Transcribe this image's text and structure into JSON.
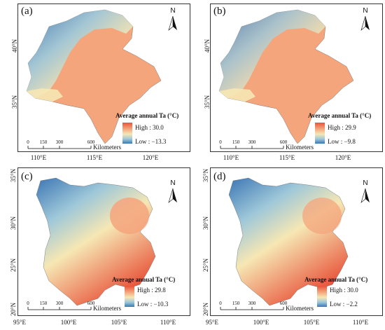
{
  "north_letter": "N",
  "legend_title": "Average annual Ta  (°C)",
  "scale": {
    "ticks": [
      "0",
      "150",
      "300",
      "600"
    ],
    "unit": "Kilometers"
  },
  "panels": [
    {
      "label": "(a)",
      "high": "High : 30.0",
      "low": "Low : −13.3",
      "lat_ticks": [
        "40°N",
        "35°N"
      ],
      "lon_ticks": [
        "110°E",
        "115°E",
        "120°E"
      ]
    },
    {
      "label": "(b)",
      "high": "High : 29.9",
      "low": "Low : −9.8",
      "lat_ticks": [
        "40°N",
        "35°N"
      ],
      "lon_ticks": [
        "110°E",
        "115°E",
        "120°E"
      ]
    },
    {
      "label": "(c)",
      "high": "High : 29.8",
      "low": "Low : −10.3",
      "lat_ticks": [
        "35°N",
        "30°N",
        "25°N",
        "20°N"
      ],
      "lon_ticks": [
        "95°E",
        "100°E",
        "105°E",
        "110°E"
      ]
    },
    {
      "label": "(d)",
      "high": "High : 30.0",
      "low": "Low : −2.2",
      "lat_ticks": [
        "35°N",
        "30°N",
        "25°N",
        "20°N"
      ],
      "lon_ticks": [
        "95°E",
        "100°E",
        "105°E",
        "110°E"
      ]
    }
  ],
  "colors": {
    "high": "#e8543a",
    "warm": "#f4a57c",
    "mid": "#f6e7b4",
    "cool": "#9fc8d9",
    "low": "#3c76b5"
  }
}
